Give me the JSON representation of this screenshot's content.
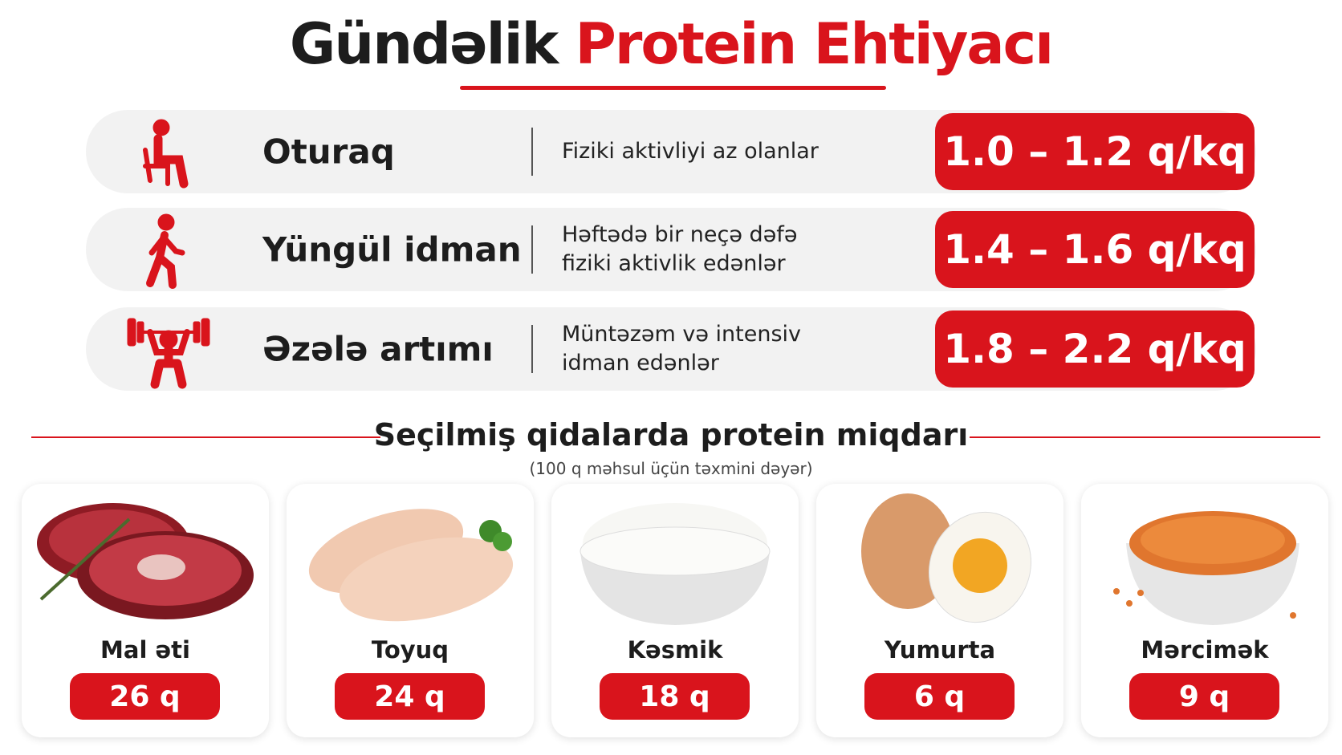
{
  "header": {
    "title_dark": "Gündəlik",
    "title_red": "Protein Ehtiyacı"
  },
  "levels": [
    {
      "label": "Oturaq",
      "description": [
        "Fiziki aktivliyi az olanlar"
      ],
      "value": "1.0 – 1.2 q/kq"
    },
    {
      "label": "Yüngül idman",
      "description": [
        "Həftədə bir neçə dəfə",
        "fiziki aktivlik edənlər"
      ],
      "value": "1.4 – 1.6 q/kq"
    },
    {
      "label": "Əzələ artımı",
      "description": [
        "Müntəzəm və intensiv",
        "idman edənlər"
      ],
      "value": "1.8 – 2.2 q/kq"
    }
  ],
  "foods": {
    "title": "Seçilmiş qidalarda protein miqdarı",
    "subtitle": "(100 q məhsul üçün təxmini dəyər)",
    "items": [
      {
        "name": "Mal əti",
        "amount": "26 q"
      },
      {
        "name": "Toyuq",
        "amount": "24 q"
      },
      {
        "name": "Kəsmik",
        "amount": "18 q"
      },
      {
        "name": "Yumurta",
        "amount": "6 q"
      },
      {
        "name": "Mərcimək",
        "amount": "9 q"
      }
    ]
  }
}
